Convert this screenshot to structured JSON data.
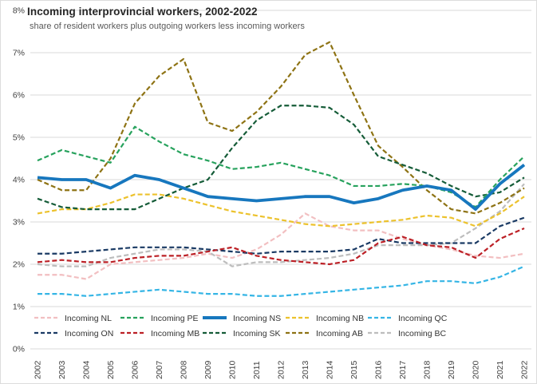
{
  "header": {
    "title": "Incoming interprovincial workers, 2002-2022",
    "subtitle": "share of resident workers plus outgoing workers less incoming workers"
  },
  "chart_data": {
    "type": "line",
    "title": "Incoming interprovincial workers, 2002-2022",
    "subtitle": "share of resident workers plus outgoing workers less incoming workers",
    "x": [
      2002,
      2003,
      2004,
      2005,
      2006,
      2007,
      2008,
      2009,
      2010,
      2011,
      2012,
      2013,
      2014,
      2015,
      2016,
      2017,
      2018,
      2019,
      2020,
      2021,
      2022
    ],
    "xlabel": "",
    "ylabel": "",
    "ylim": [
      0,
      8
    ],
    "yticks": [
      "0%",
      "1%",
      "2%",
      "3%",
      "4%",
      "5%",
      "6%",
      "7%",
      "8%"
    ],
    "grid": true,
    "legend_position": "bottom-inside-two-rows",
    "series": [
      {
        "name": "Incoming NL",
        "color": "#f2bfc1",
        "style": "dashed",
        "values": [
          1.75,
          1.75,
          1.65,
          2.0,
          2.05,
          2.1,
          2.15,
          2.25,
          2.15,
          2.35,
          2.7,
          3.2,
          2.9,
          2.8,
          2.8,
          2.6,
          2.45,
          2.35,
          2.2,
          2.15,
          2.25
        ]
      },
      {
        "name": "Incoming PE",
        "color": "#27a25d",
        "style": "dashed",
        "values": [
          4.45,
          4.7,
          4.55,
          4.4,
          5.25,
          4.9,
          4.6,
          4.45,
          4.25,
          4.3,
          4.4,
          4.25,
          4.1,
          3.85,
          3.85,
          3.9,
          3.85,
          3.7,
          3.35,
          4.0,
          4.55
        ]
      },
      {
        "name": "Incoming NS",
        "color": "#1777be",
        "style": "solid",
        "values": [
          4.05,
          4.0,
          4.0,
          3.8,
          4.1,
          4.0,
          3.8,
          3.6,
          3.55,
          3.5,
          3.55,
          3.6,
          3.6,
          3.45,
          3.55,
          3.75,
          3.85,
          3.75,
          3.3,
          3.9,
          4.35
        ]
      },
      {
        "name": "Incoming NB",
        "color": "#ecc22d",
        "style": "dashed",
        "values": [
          3.2,
          3.3,
          3.3,
          3.45,
          3.65,
          3.65,
          3.55,
          3.4,
          3.25,
          3.15,
          3.05,
          2.95,
          2.9,
          2.95,
          3.0,
          3.05,
          3.15,
          3.1,
          2.9,
          3.2,
          3.6
        ]
      },
      {
        "name": "Incoming QC",
        "color": "#35b5e5",
        "style": "dashed",
        "values": [
          1.3,
          1.3,
          1.25,
          1.3,
          1.35,
          1.4,
          1.35,
          1.3,
          1.3,
          1.25,
          1.25,
          1.3,
          1.35,
          1.4,
          1.45,
          1.5,
          1.6,
          1.6,
          1.55,
          1.7,
          1.95
        ]
      },
      {
        "name": "Incoming ON",
        "color": "#1a3a64",
        "style": "dashed",
        "values": [
          2.25,
          2.25,
          2.3,
          2.35,
          2.4,
          2.4,
          2.4,
          2.35,
          2.3,
          2.25,
          2.3,
          2.3,
          2.3,
          2.35,
          2.6,
          2.5,
          2.5,
          2.5,
          2.5,
          2.9,
          3.1
        ]
      },
      {
        "name": "Incoming MB",
        "color": "#bc2026",
        "style": "dashed",
        "values": [
          2.05,
          2.1,
          2.05,
          2.05,
          2.15,
          2.2,
          2.2,
          2.3,
          2.4,
          2.2,
          2.1,
          2.05,
          2.0,
          2.1,
          2.5,
          2.65,
          2.45,
          2.4,
          2.15,
          2.6,
          2.85
        ]
      },
      {
        "name": "Incoming SK",
        "color": "#155c38",
        "style": "dashed",
        "values": [
          3.55,
          3.35,
          3.3,
          3.3,
          3.3,
          3.55,
          3.8,
          4.0,
          4.75,
          5.4,
          5.75,
          5.75,
          5.7,
          5.3,
          4.55,
          4.35,
          4.15,
          3.85,
          3.6,
          3.7,
          4.05
        ]
      },
      {
        "name": "Incoming AB",
        "color": "#8e7314",
        "style": "dashed",
        "values": [
          4.0,
          3.75,
          3.75,
          4.5,
          5.8,
          6.45,
          6.85,
          5.35,
          5.15,
          5.6,
          6.2,
          6.95,
          7.25,
          6.0,
          4.8,
          4.3,
          3.75,
          3.3,
          3.2,
          3.45,
          3.8
        ]
      },
      {
        "name": "Incoming BC",
        "color": "#bdbdbd",
        "style": "dashed",
        "values": [
          2.0,
          1.95,
          1.95,
          2.15,
          2.25,
          2.35,
          2.35,
          2.3,
          1.95,
          2.05,
          2.05,
          2.1,
          2.15,
          2.25,
          2.45,
          2.45,
          2.45,
          2.5,
          2.85,
          3.25,
          3.9
        ]
      }
    ]
  },
  "colors": {
    "gridline": "#d9d9d9",
    "axis_text": "#404040",
    "legend_text": "#333333",
    "title_text": "#262626",
    "subtitle_text": "#595959"
  }
}
